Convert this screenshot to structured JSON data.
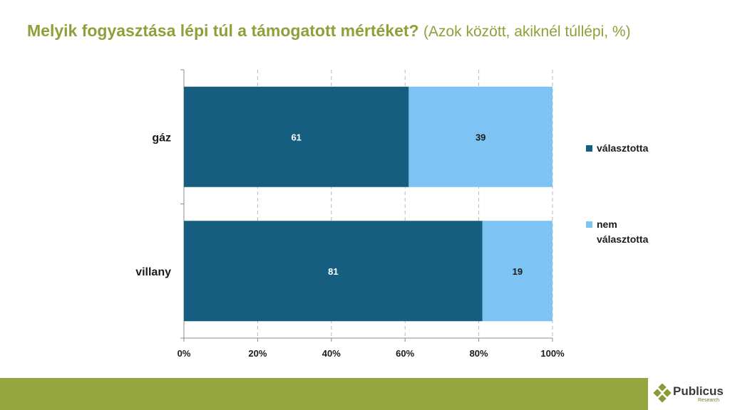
{
  "header": {
    "title_main": "Melyik fogyasztása lépi túl a támogatott mértéket?",
    "title_sub": "(Azok között, akiknél túllépi, %)"
  },
  "chart_data": {
    "type": "bar",
    "orientation": "horizontal",
    "stacked": true,
    "categories": [
      "gáz",
      "villany"
    ],
    "series": [
      {
        "name": "választotta",
        "values": [
          61,
          81
        ],
        "color": "#155e80",
        "label_color": "#ffffff"
      },
      {
        "name": "nem választotta",
        "values": [
          39,
          19
        ],
        "color": "#7dc3f4",
        "label_color": "#1a1a1a"
      }
    ],
    "xlim": [
      0,
      100
    ],
    "x_ticks": [
      "0%",
      "20%",
      "40%",
      "60%",
      "80%",
      "100%"
    ],
    "grid": "vertical dashed",
    "legend": "right"
  },
  "legend": {
    "items": [
      {
        "lines": [
          "választotta"
        ],
        "color": "#155e80"
      },
      {
        "lines": [
          "nem",
          "választotta"
        ],
        "color": "#7dc3f4"
      }
    ]
  },
  "colors": {
    "title": "#8fa03a",
    "footer_band": "#96a63e"
  },
  "logo": {
    "name": "Publicus",
    "sub": "Research"
  }
}
